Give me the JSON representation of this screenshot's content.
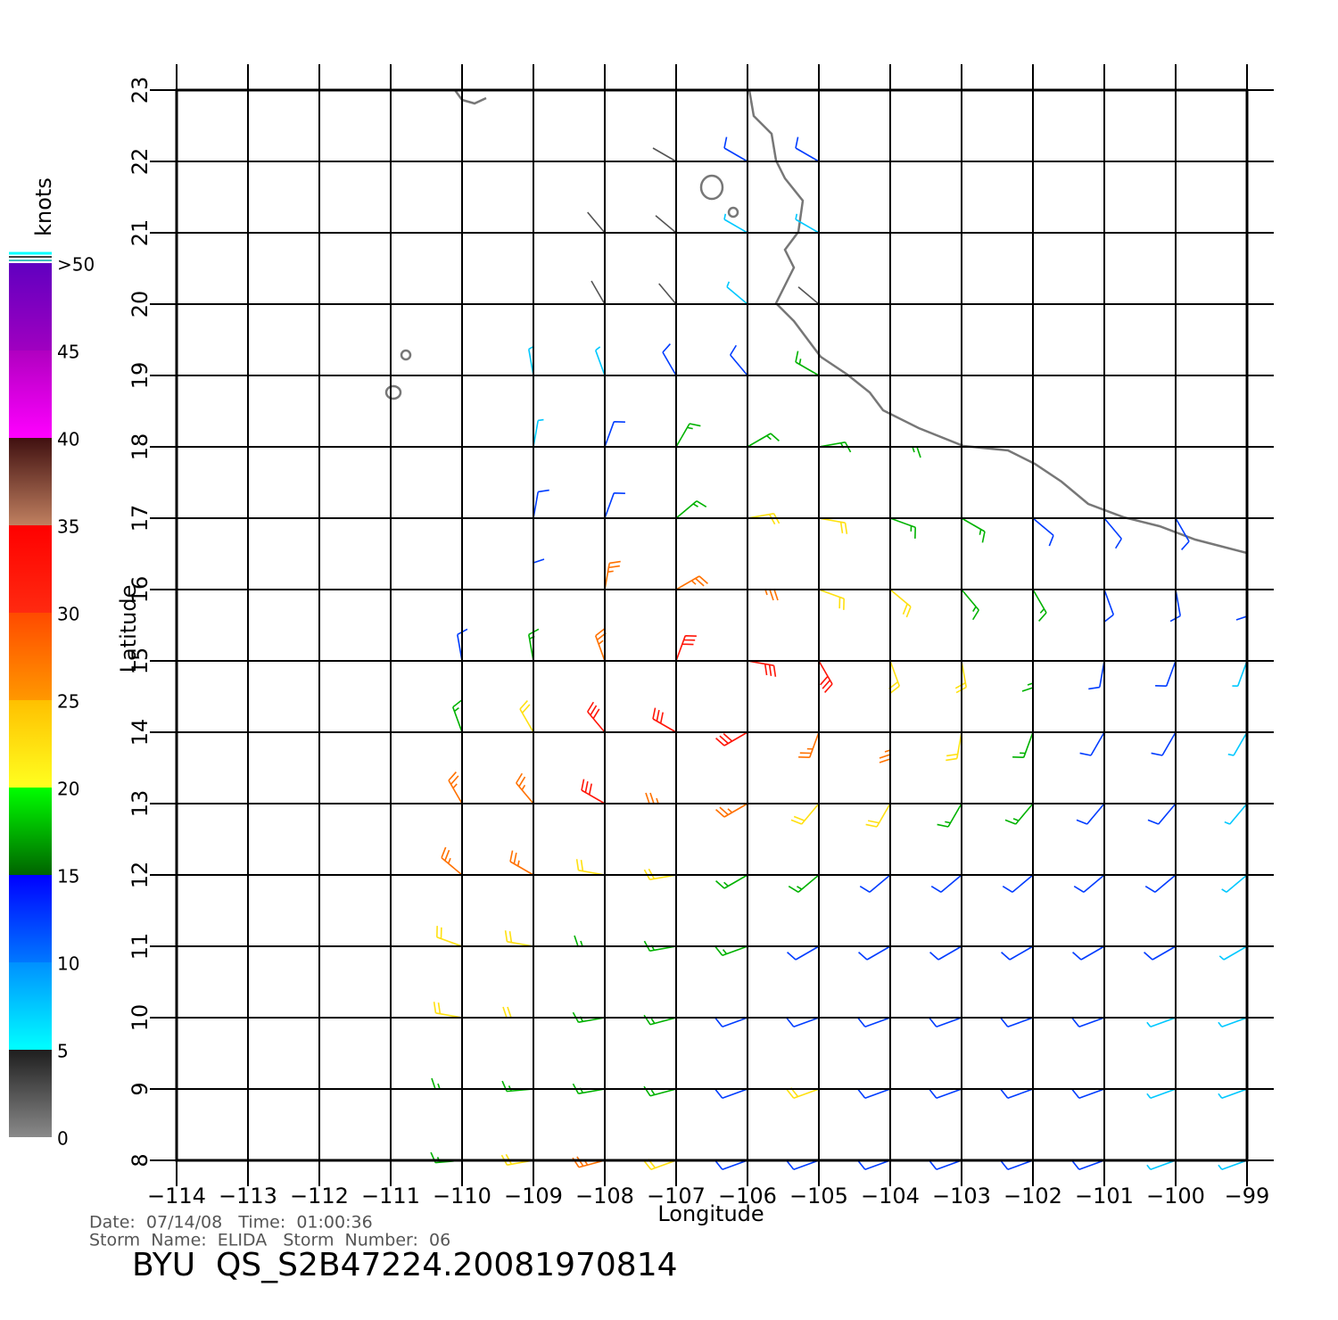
{
  "map": {
    "xlabel": "Longitude",
    "ylabel": "Latitude",
    "xlim": [
      -114,
      -99
    ],
    "ylim": [
      8,
      23
    ],
    "xticks": [
      {
        "value": -114,
        "label": "−114"
      },
      {
        "value": -113,
        "label": "−113"
      },
      {
        "value": -112,
        "label": "−112"
      },
      {
        "value": -111,
        "label": "−111"
      },
      {
        "value": -110,
        "label": "−110"
      },
      {
        "value": -109,
        "label": "−109"
      },
      {
        "value": -108,
        "label": "−108"
      },
      {
        "value": -107,
        "label": "−107"
      },
      {
        "value": -106,
        "label": "−106"
      },
      {
        "value": -105,
        "label": "−105"
      },
      {
        "value": -104,
        "label": "−104"
      },
      {
        "value": -103,
        "label": "−103"
      },
      {
        "value": -102,
        "label": "−102"
      },
      {
        "value": -101,
        "label": "−101"
      },
      {
        "value": -100,
        "label": "−100"
      },
      {
        "value": -99,
        "label": "−99"
      }
    ],
    "yticks": [
      8,
      9,
      10,
      11,
      12,
      13,
      14,
      15,
      16,
      17,
      18,
      19,
      20,
      21,
      22,
      23
    ],
    "grid": true
  },
  "colorbar": {
    "title": "knots",
    "lim": [
      0,
      50
    ],
    "ticks": [
      0,
      5,
      10,
      15,
      20,
      25,
      30,
      35,
      40,
      45,
      {
        "value": 50,
        "label": ">50"
      }
    ],
    "colors": [
      [
        "#8a8a8a",
        "#1e1e1e"
      ],
      [
        "#00ffff",
        "#0090ff"
      ],
      [
        "#0078ff",
        "#0000ff"
      ],
      [
        "#006400",
        "#00ff00"
      ],
      [
        "#ffff20",
        "#ffc000"
      ],
      [
        "#ff9800",
        "#ff4a00"
      ],
      [
        "#ff2a10",
        "#ff0000"
      ],
      [
        "#c08060",
        "#401010"
      ],
      [
        "#ff00ff",
        "#b000c0"
      ],
      [
        "#a000c0",
        "#6000c0"
      ]
    ]
  },
  "wind": {
    "lons": [
      -110,
      -109,
      -108,
      -107,
      -106,
      -105,
      -104,
      -103,
      -102,
      -101,
      -100,
      -99
    ],
    "lats": [
      22,
      21,
      20,
      19,
      18,
      17,
      16,
      15,
      14,
      13,
      12,
      11,
      10,
      9,
      8
    ],
    "speed": [
      [
        null,
        null,
        null,
        4,
        10,
        10,
        null,
        null,
        null,
        null,
        null,
        null
      ],
      [
        null,
        null,
        3,
        4,
        8,
        9,
        null,
        null,
        null,
        null,
        null,
        null
      ],
      [
        null,
        null,
        3,
        3,
        5,
        4,
        null,
        null,
        null,
        null,
        null,
        null
      ],
      [
        null,
        6,
        8,
        10,
        12,
        15,
        null,
        null,
        null,
        null,
        null,
        null
      ],
      [
        null,
        8,
        12,
        15,
        17,
        18,
        17,
        null,
        null,
        null,
        null,
        null
      ],
      [
        null,
        12,
        14,
        18,
        22,
        21,
        19,
        19,
        14,
        12,
        10,
        null
      ],
      [
        null,
        12,
        25,
        26,
        28,
        24,
        20,
        18,
        16,
        13,
        12,
        10
      ],
      [
        14,
        16,
        28,
        32,
        33,
        30,
        22,
        20,
        17,
        13,
        11,
        9
      ],
      [
        18,
        24,
        32,
        30,
        33,
        25,
        28,
        20,
        18,
        14,
        12,
        9
      ],
      [
        26,
        28,
        32,
        27,
        25,
        22,
        22,
        18,
        15,
        13,
        11,
        8
      ],
      [
        27,
        25,
        22,
        20,
        18,
        16,
        13,
        13,
        12,
        11,
        10,
        8
      ],
      [
        24,
        22,
        19,
        17,
        15,
        13,
        12,
        11,
        12,
        13,
        10,
        7
      ],
      [
        22,
        20,
        18,
        15,
        13,
        12,
        11,
        12,
        13,
        14,
        9,
        7
      ],
      [
        17,
        18,
        19,
        17,
        14,
        20,
        14,
        12,
        11,
        10,
        9,
        8
      ],
      [
        17,
        22,
        25,
        20,
        14,
        13,
        13,
        12,
        13,
        10,
        9,
        8
      ]
    ],
    "direction": [
      [
        null,
        null,
        null,
        300,
        300,
        300,
        null,
        null,
        null,
        null,
        null,
        null
      ],
      [
        null,
        null,
        320,
        310,
        300,
        300,
        null,
        null,
        null,
        null,
        null,
        null
      ],
      [
        null,
        null,
        330,
        320,
        310,
        310,
        null,
        null,
        null,
        null,
        null,
        null
      ],
      [
        null,
        350,
        340,
        330,
        320,
        300,
        null,
        null,
        null,
        null,
        null,
        null
      ],
      [
        null,
        10,
        20,
        30,
        60,
        80,
        90,
        null,
        null,
        null,
        null,
        null
      ],
      [
        null,
        10,
        20,
        50,
        80,
        100,
        110,
        120,
        130,
        140,
        150,
        null
      ],
      [
        null,
        0,
        10,
        60,
        90,
        110,
        130,
        140,
        150,
        160,
        170,
        180
      ],
      [
        350,
        350,
        340,
        20,
        100,
        150,
        160,
        170,
        180,
        190,
        200,
        200
      ],
      [
        340,
        330,
        320,
        300,
        240,
        200,
        180,
        190,
        200,
        210,
        210,
        210
      ],
      [
        330,
        320,
        300,
        270,
        240,
        220,
        210,
        210,
        220,
        220,
        220,
        220
      ],
      [
        310,
        300,
        280,
        260,
        240,
        230,
        230,
        230,
        230,
        230,
        230,
        230
      ],
      [
        290,
        280,
        270,
        260,
        250,
        240,
        240,
        240,
        240,
        240,
        240,
        240
      ],
      [
        280,
        270,
        260,
        255,
        250,
        250,
        250,
        250,
        250,
        250,
        250,
        250
      ],
      [
        270,
        265,
        260,
        255,
        250,
        250,
        250,
        250,
        250,
        250,
        250,
        250
      ],
      [
        265,
        260,
        255,
        250,
        250,
        250,
        250,
        250,
        250,
        250,
        250,
        250
      ]
    ]
  },
  "footer": {
    "date_line": "Date:  07/14/08   Time:  01:00:36",
    "storm_line": "Storm  Name:  ELIDA   Storm  Number:  06",
    "file": "BYU  QS_S2B47224.20081970814"
  }
}
